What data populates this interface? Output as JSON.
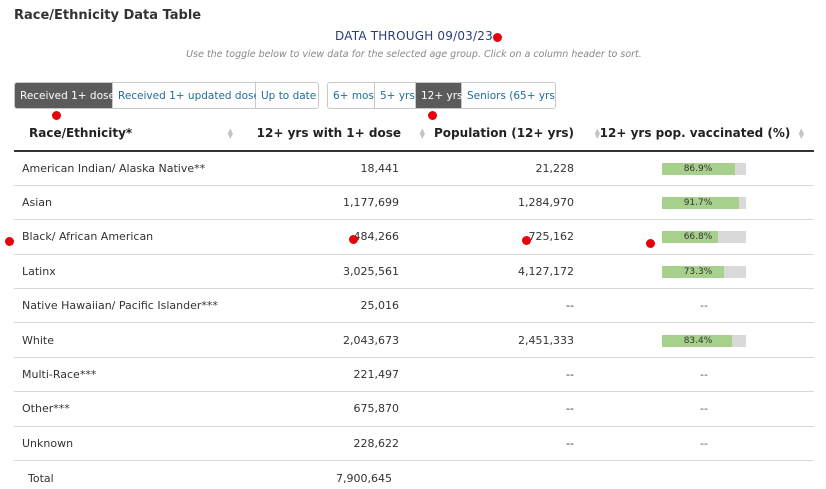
{
  "panel_title": "Race/Ethnicity Data Table",
  "data_through": "DATA THROUGH 09/03/23",
  "instructions": "Use the toggle below to view data for the selected age group. Click on a column header to sort.",
  "dose_toggle": [
    {
      "label": "Received 1+ dose",
      "active": true
    },
    {
      "label": "Received 1+ updated dose",
      "active": false
    },
    {
      "label": "Up to date",
      "active": false
    }
  ],
  "age_toggle": [
    {
      "label": "6+ mos",
      "active": false
    },
    {
      "label": "5+ yrs",
      "active": false
    },
    {
      "label": "12+ yrs",
      "active": true
    },
    {
      "label": "Seniors (65+ yrs)",
      "active": false
    }
  ],
  "table": {
    "headers": [
      "Race/Ethnicity*",
      "12+ yrs with 1+ dose",
      "Population (12+ yrs)",
      "12+ yrs pop. vaccinated (%)"
    ],
    "rows": [
      {
        "name": "American Indian/ Alaska Native**",
        "dose": "18,441",
        "population": "21,228",
        "pct": "86.9%",
        "pct_value": 86.9
      },
      {
        "name": "Asian",
        "dose": "1,177,699",
        "population": "1,284,970",
        "pct": "91.7%",
        "pct_value": 91.7
      },
      {
        "name": "Black/ African American",
        "dose": "484,266",
        "population": "725,162",
        "pct": "66.8%",
        "pct_value": 66.8
      },
      {
        "name": "Latinx",
        "dose": "3,025,561",
        "population": "4,127,172",
        "pct": "73.3%",
        "pct_value": 73.3
      },
      {
        "name": "Native Hawaiian/ Pacific Islander***",
        "dose": "25,016",
        "population": "--",
        "pct": "--",
        "pct_value": null
      },
      {
        "name": "White",
        "dose": "2,043,673",
        "population": "2,451,333",
        "pct": "83.4%",
        "pct_value": 83.4
      },
      {
        "name": "Multi-Race***",
        "dose": "221,497",
        "population": "--",
        "pct": "--",
        "pct_value": null
      },
      {
        "name": "Other***",
        "dose": "675,870",
        "population": "--",
        "pct": "--",
        "pct_value": null
      },
      {
        "name": "Unknown",
        "dose": "228,622",
        "population": "--",
        "pct": "--",
        "pct_value": null
      }
    ],
    "total": {
      "name": "Total",
      "dose": "7,900,645"
    }
  },
  "colors": {
    "active_toggle": "#5b5b5b",
    "toggle_text": "#1f6d9a",
    "bar_fill": "#a8d08d",
    "bar_track": "#d9d9d9",
    "marker": "#e8000b"
  }
}
